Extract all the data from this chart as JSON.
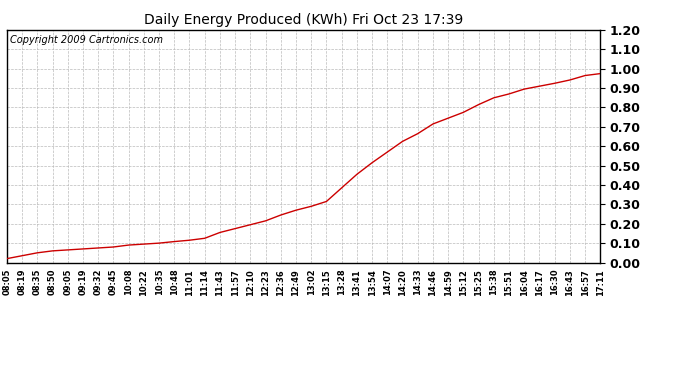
{
  "title": "Daily Energy Produced (KWh) Fri Oct 23 17:39",
  "copyright_text": "Copyright 2009 Cartronics.com",
  "line_color": "#cc0000",
  "background_color": "#ffffff",
  "plot_bg_color": "#ffffff",
  "grid_color": "#bbbbbb",
  "ylim": [
    0.0,
    1.2
  ],
  "yticks": [
    0.0,
    0.1,
    0.2,
    0.3,
    0.4,
    0.5,
    0.6,
    0.7,
    0.8,
    0.9,
    1.0,
    1.1,
    1.2
  ],
  "xtick_labels": [
    "08:05",
    "08:19",
    "08:35",
    "08:50",
    "09:05",
    "09:19",
    "09:32",
    "09:45",
    "10:08",
    "10:22",
    "10:35",
    "10:48",
    "11:01",
    "11:14",
    "11:43",
    "11:57",
    "12:10",
    "12:23",
    "12:36",
    "12:49",
    "13:02",
    "13:15",
    "13:28",
    "13:41",
    "13:54",
    "14:07",
    "14:20",
    "14:33",
    "14:46",
    "14:59",
    "15:12",
    "15:25",
    "15:38",
    "15:51",
    "16:04",
    "16:17",
    "16:30",
    "16:43",
    "16:57",
    "17:11"
  ],
  "x_values": [
    0,
    1,
    2,
    3,
    4,
    5,
    6,
    7,
    8,
    9,
    10,
    11,
    12,
    13,
    14,
    15,
    16,
    17,
    18,
    19,
    20,
    21,
    22,
    23,
    24,
    25,
    26,
    27,
    28,
    29,
    30,
    31,
    32,
    33,
    34,
    35,
    36,
    37,
    38,
    39
  ],
  "y_values": [
    0.02,
    0.035,
    0.05,
    0.06,
    0.065,
    0.07,
    0.075,
    0.08,
    0.09,
    0.095,
    0.1,
    0.108,
    0.115,
    0.125,
    0.155,
    0.175,
    0.195,
    0.215,
    0.245,
    0.27,
    0.29,
    0.315,
    0.385,
    0.455,
    0.515,
    0.57,
    0.625,
    0.665,
    0.715,
    0.745,
    0.775,
    0.815,
    0.85,
    0.87,
    0.895,
    0.91,
    0.925,
    0.942,
    0.965,
    0.975
  ],
  "title_fontsize": 10,
  "ytick_fontsize": 9,
  "xtick_fontsize": 6,
  "copyright_fontsize": 7
}
